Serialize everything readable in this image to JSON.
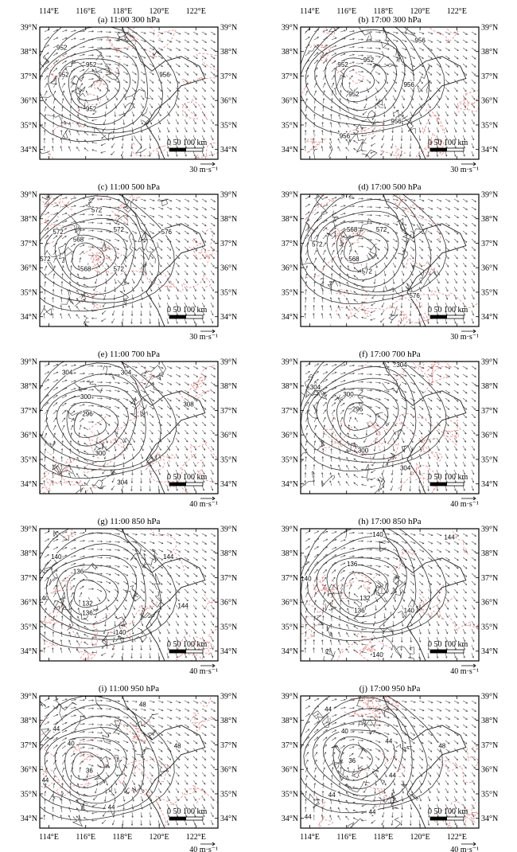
{
  "figure": {
    "lon_ticks": [
      114,
      116,
      118,
      120,
      122
    ],
    "lat_ticks": [
      34,
      35,
      36,
      37,
      38,
      39
    ],
    "lon_range": [
      113.5,
      123.2
    ],
    "lat_range": [
      33.6,
      39.0
    ],
    "lon_labels": [
      "114°E",
      "116°E",
      "118°E",
      "120°E",
      "122°E"
    ],
    "lat_labels": [
      "34°N",
      "35°N",
      "36°N",
      "37°N",
      "38°N",
      "39°N"
    ],
    "scale_bar_label": "0   50 100 km",
    "contour_color": "#333333",
    "temperature_color": "#e08a8a",
    "vector_color": "#444444"
  },
  "panels": [
    {
      "id": "a",
      "title": "(a) 11:00  300 hPa",
      "ref_vector_label": "30 m·s⁻¹",
      "center": [
        116.2,
        36.5
      ],
      "contour_labels": [
        {
          "text": "952",
          "lon": 114.7,
          "lat": 38.1
        },
        {
          "text": "952",
          "lon": 116.3,
          "lat": 37.4
        },
        {
          "text": "952",
          "lon": 114.8,
          "lat": 37.0
        },
        {
          "text": "956",
          "lon": 120.3,
          "lat": 37.0
        },
        {
          "text": "952",
          "lon": 116.3,
          "lat": 35.6
        }
      ]
    },
    {
      "id": "b",
      "title": "(b) 17:00  300 hPa",
      "ref_vector_label": "30 m·s⁻¹",
      "center": [
        116.5,
        36.8
      ],
      "contour_labels": [
        {
          "text": "956",
          "lon": 120.0,
          "lat": 38.4
        },
        {
          "text": "952",
          "lon": 117.2,
          "lat": 37.6
        },
        {
          "text": "952",
          "lon": 115.8,
          "lat": 37.4
        },
        {
          "text": "956",
          "lon": 119.4,
          "lat": 36.6
        },
        {
          "text": "952",
          "lon": 116.4,
          "lat": 36.2
        },
        {
          "text": "956",
          "lon": 118.7,
          "lat": 35.1
        },
        {
          "text": "956",
          "lon": 115.9,
          "lat": 34.5
        }
      ]
    },
    {
      "id": "c",
      "title": "(c) 11:00  500 hPa",
      "ref_vector_label": "30 m·s⁻¹",
      "center": [
        116.0,
        36.4
      ],
      "contour_labels": [
        {
          "text": "572",
          "lon": 116.6,
          "lat": 38.3
        },
        {
          "text": "572",
          "lon": 114.5,
          "lat": 37.4
        },
        {
          "text": "568",
          "lon": 115.6,
          "lat": 37.1
        },
        {
          "text": "572",
          "lon": 117.8,
          "lat": 37.5
        },
        {
          "text": "576",
          "lon": 120.4,
          "lat": 37.4
        },
        {
          "text": "572",
          "lon": 113.8,
          "lat": 36.3
        },
        {
          "text": "568",
          "lon": 116.0,
          "lat": 35.9
        },
        {
          "text": "572",
          "lon": 117.8,
          "lat": 35.9
        }
      ]
    },
    {
      "id": "d",
      "title": "(d) 17:00  500 hPa",
      "ref_vector_label": "30 m·s⁻¹",
      "center": [
        116.6,
        36.7
      ],
      "contour_labels": [
        {
          "text": "572",
          "lon": 116.0,
          "lat": 38.9
        },
        {
          "text": "568",
          "lon": 116.3,
          "lat": 37.5
        },
        {
          "text": "572",
          "lon": 117.9,
          "lat": 37.5
        },
        {
          "text": "572",
          "lon": 114.4,
          "lat": 36.9
        },
        {
          "text": "568",
          "lon": 116.4,
          "lat": 36.3
        },
        {
          "text": "572",
          "lon": 117.1,
          "lat": 35.8
        },
        {
          "text": "576",
          "lon": 119.7,
          "lat": 34.8
        }
      ]
    },
    {
      "id": "e",
      "title": "(e) 11:00  700 hPa",
      "ref_vector_label": "40 m·s⁻¹",
      "center": [
        116.1,
        36.4
      ],
      "contour_labels": [
        {
          "text": "304",
          "lon": 115.0,
          "lat": 38.5
        },
        {
          "text": "304",
          "lon": 118.2,
          "lat": 38.5
        },
        {
          "text": "300",
          "lon": 116.0,
          "lat": 37.5
        },
        {
          "text": "296",
          "lon": 116.1,
          "lat": 36.8
        },
        {
          "text": "308",
          "lon": 121.6,
          "lat": 37.2
        },
        {
          "text": "300",
          "lon": 116.8,
          "lat": 35.2
        },
        {
          "text": "304",
          "lon": 118.0,
          "lat": 34.0
        }
      ]
    },
    {
      "id": "f",
      "title": "(f) 17:00  700 hPa",
      "ref_vector_label": "40 m·s⁻¹",
      "center": [
        116.6,
        36.7
      ],
      "contour_labels": [
        {
          "text": "304",
          "lon": 119.0,
          "lat": 38.8
        },
        {
          "text": "304",
          "lon": 114.3,
          "lat": 37.9
        },
        {
          "text": "300",
          "lon": 116.1,
          "lat": 37.6
        },
        {
          "text": "296",
          "lon": 116.6,
          "lat": 37.0
        },
        {
          "text": "300",
          "lon": 116.9,
          "lat": 35.3
        },
        {
          "text": "304",
          "lon": 119.2,
          "lat": 34.6
        }
      ]
    },
    {
      "id": "g",
      "title": "(g) 11:00  850 hPa",
      "ref_vector_label": "40 m·s⁻¹",
      "center": [
        116.1,
        36.3
      ],
      "contour_labels": [
        {
          "text": "140",
          "lon": 114.4,
          "lat": 37.8
        },
        {
          "text": "136",
          "lon": 115.6,
          "lat": 37.2
        },
        {
          "text": "144",
          "lon": 120.5,
          "lat": 37.8
        },
        {
          "text": "140",
          "lon": 113.7,
          "lat": 36.1
        },
        {
          "text": "132",
          "lon": 116.1,
          "lat": 35.9
        },
        {
          "text": "136",
          "lon": 116.1,
          "lat": 35.5
        },
        {
          "text": "144",
          "lon": 121.3,
          "lat": 35.8
        },
        {
          "text": "140",
          "lon": 117.9,
          "lat": 34.7
        }
      ]
    },
    {
      "id": "h",
      "title": "(h) 17:00  850 hPa",
      "ref_vector_label": "40 m·s⁻¹",
      "center": [
        116.6,
        36.6
      ],
      "contour_labels": [
        {
          "text": "140",
          "lon": 117.7,
          "lat": 38.7
        },
        {
          "text": "144",
          "lon": 121.6,
          "lat": 38.6
        },
        {
          "text": "136",
          "lon": 116.3,
          "lat": 37.5
        },
        {
          "text": "140",
          "lon": 113.8,
          "lat": 36.9
        },
        {
          "text": "132",
          "lon": 117.0,
          "lat": 36.1
        },
        {
          "text": "136",
          "lon": 116.7,
          "lat": 35.6
        },
        {
          "text": "140",
          "lon": 119.4,
          "lat": 35.6
        },
        {
          "text": "140",
          "lon": 117.7,
          "lat": 33.8
        }
      ]
    },
    {
      "id": "i",
      "title": "(i) 11:00  950 hPa",
      "ref_vector_label": "40 m·s⁻¹",
      "center": [
        116.0,
        36.1
      ],
      "contour_labels": [
        {
          "text": "48",
          "lon": 119.1,
          "lat": 38.6
        },
        {
          "text": "44",
          "lon": 114.4,
          "lat": 37.6
        },
        {
          "text": "40",
          "lon": 115.2,
          "lat": 37.0
        },
        {
          "text": "48",
          "lon": 121.0,
          "lat": 36.9
        },
        {
          "text": "36",
          "lon": 116.2,
          "lat": 35.9
        },
        {
          "text": "44",
          "lon": 113.8,
          "lat": 35.5
        },
        {
          "text": "44",
          "lon": 117.4,
          "lat": 34.4
        }
      ]
    },
    {
      "id": "j",
      "title": "(j) 17:00  950 hPa",
      "ref_vector_label": "40 m·s⁻¹",
      "center": [
        116.4,
        36.4
      ],
      "contour_labels": [
        {
          "text": "44",
          "lon": 115.0,
          "lat": 38.4
        },
        {
          "text": "40",
          "lon": 115.9,
          "lat": 37.5
        },
        {
          "text": "44",
          "lon": 118.3,
          "lat": 37.1
        },
        {
          "text": "48",
          "lon": 121.2,
          "lat": 36.9
        },
        {
          "text": "36",
          "lon": 116.3,
          "lat": 36.3
        },
        {
          "text": "44",
          "lon": 118.5,
          "lat": 35.7
        },
        {
          "text": "44",
          "lon": 115.2,
          "lat": 34.9
        },
        {
          "text": "44",
          "lon": 117.4,
          "lat": 34.2
        },
        {
          "text": "44",
          "lon": 113.9,
          "lat": 34.0
        }
      ]
    }
  ]
}
